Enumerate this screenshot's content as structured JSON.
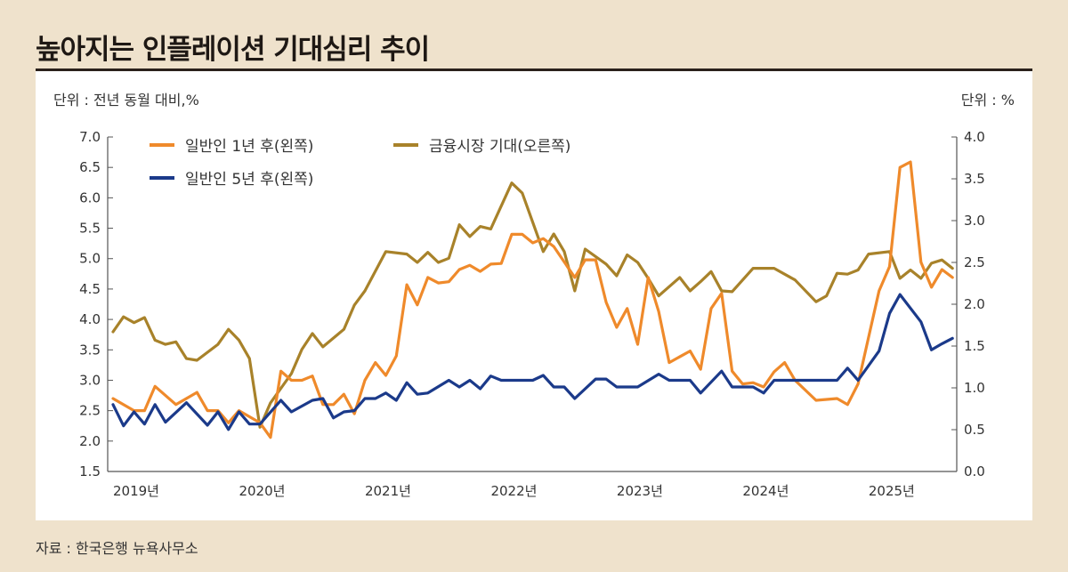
{
  "title": "높아지는 인플레이션 기대심리 추이",
  "unit_left": "단위 : 전년 동월 대비,%",
  "unit_right": "단위 : %",
  "source": "자료 : 한국은행 뉴욕사무소",
  "chart_data": {
    "type": "line",
    "title": "높아지는 인플레이션 기대심리 추이",
    "x_tick_labels": [
      "2019년",
      "2020년",
      "2021년",
      "2022년",
      "2023년",
      "2024년",
      "2025년"
    ],
    "y_left": {
      "label": "단위 : 전년 동월 대비,%",
      "range": [
        1.5,
        7.0
      ],
      "ticks": [
        "1.5",
        "2.0",
        "2.5",
        "3.0",
        "3.5",
        "4.0",
        "4.5",
        "5.0",
        "5.5",
        "6.0",
        "6.5",
        "7.0"
      ]
    },
    "y_right": {
      "label": "단위 : %",
      "range": [
        0.0,
        4.0
      ],
      "ticks": [
        "0.0",
        "0.5",
        "1.0",
        "1.5",
        "2.0",
        "2.5",
        "3.0",
        "3.5",
        "4.0"
      ]
    },
    "grid": false,
    "legend_placement": "top-left",
    "series": [
      {
        "name": "일반인 1년 후(왼쪽)",
        "axis": "left",
        "color": "#ef8a2b",
        "points": [
          [
            "2019-01",
            2.7
          ],
          [
            "2019-03",
            2.5
          ],
          [
            "2019-04",
            2.5
          ],
          [
            "2019-05",
            2.9
          ],
          [
            "2019-07",
            2.6
          ],
          [
            "2019-09",
            2.8
          ],
          [
            "2019-10",
            2.5
          ],
          [
            "2019-11",
            2.5
          ],
          [
            "2019-12",
            2.3
          ],
          [
            "2020-01",
            2.5
          ],
          [
            "2020-03",
            2.3
          ],
          [
            "2020-04",
            2.06
          ],
          [
            "2020-05",
            3.15
          ],
          [
            "2020-06",
            3.0
          ],
          [
            "2020-07",
            3.0
          ],
          [
            "2020-08",
            3.07
          ],
          [
            "2020-09",
            2.6
          ],
          [
            "2020-10",
            2.6
          ],
          [
            "2020-11",
            2.77
          ],
          [
            "2020-12",
            2.45
          ],
          [
            "2021-01",
            3.0
          ],
          [
            "2021-02",
            3.29
          ],
          [
            "2021-03",
            3.08
          ],
          [
            "2021-04",
            3.4
          ],
          [
            "2021-05",
            4.57
          ],
          [
            "2021-06",
            4.24
          ],
          [
            "2021-07",
            4.69
          ],
          [
            "2021-08",
            4.6
          ],
          [
            "2021-09",
            4.62
          ],
          [
            "2021-10",
            4.82
          ],
          [
            "2021-11",
            4.89
          ],
          [
            "2021-12",
            4.79
          ],
          [
            "2022-01",
            4.91
          ],
          [
            "2022-02",
            4.92
          ],
          [
            "2022-03",
            5.4
          ],
          [
            "2022-04",
            5.4
          ],
          [
            "2022-05",
            5.26
          ],
          [
            "2022-06",
            5.33
          ],
          [
            "2022-07",
            5.2
          ],
          [
            "2022-09",
            4.69
          ],
          [
            "2022-10",
            4.98
          ],
          [
            "2022-11",
            4.98
          ],
          [
            "2022-12",
            4.28
          ],
          [
            "2023-01",
            3.87
          ],
          [
            "2023-02",
            4.18
          ],
          [
            "2023-03",
            3.59
          ],
          [
            "2023-04",
            4.69
          ],
          [
            "2023-05",
            4.13
          ],
          [
            "2023-06",
            3.29
          ],
          [
            "2023-08",
            3.48
          ],
          [
            "2023-09",
            3.18
          ],
          [
            "2023-10",
            4.18
          ],
          [
            "2023-11",
            4.43
          ],
          [
            "2023-12",
            3.15
          ],
          [
            "2024-01",
            2.94
          ],
          [
            "2024-02",
            2.96
          ],
          [
            "2024-03",
            2.89
          ],
          [
            "2024-04",
            3.14
          ],
          [
            "2024-05",
            3.29
          ],
          [
            "2024-06",
            3.0
          ],
          [
            "2024-08",
            2.67
          ],
          [
            "2024-10",
            2.7
          ],
          [
            "2024-11",
            2.6
          ],
          [
            "2024-12",
            2.94
          ],
          [
            "2025-02",
            4.47
          ],
          [
            "2025-03",
            4.87
          ],
          [
            "2025-04",
            6.5
          ],
          [
            "2025-05",
            6.59
          ],
          [
            "2025-06",
            4.94
          ],
          [
            "2025-07",
            4.53
          ],
          [
            "2025-08",
            4.82
          ],
          [
            "2025-09",
            4.69
          ]
        ]
      },
      {
        "name": "금융시장 기대(오른쪽)",
        "axis": "right",
        "color": "#a8822a",
        "points": [
          [
            "2019-01",
            1.67
          ],
          [
            "2019-02",
            1.85
          ],
          [
            "2019-03",
            1.78
          ],
          [
            "2019-04",
            1.84
          ],
          [
            "2019-05",
            1.57
          ],
          [
            "2019-06",
            1.52
          ],
          [
            "2019-07",
            1.55
          ],
          [
            "2019-08",
            1.35
          ],
          [
            "2019-09",
            1.33
          ],
          [
            "2019-11",
            1.52
          ],
          [
            "2019-12",
            1.7
          ],
          [
            "2020-01",
            1.57
          ],
          [
            "2020-02",
            1.35
          ],
          [
            "2020-03",
            0.53
          ],
          [
            "2020-04",
            0.82
          ],
          [
            "2020-06",
            1.17
          ],
          [
            "2020-07",
            1.46
          ],
          [
            "2020-08",
            1.65
          ],
          [
            "2020-09",
            1.49
          ],
          [
            "2020-11",
            1.7
          ],
          [
            "2020-12",
            1.99
          ],
          [
            "2021-01",
            2.16
          ],
          [
            "2021-03",
            2.63
          ],
          [
            "2021-05",
            2.6
          ],
          [
            "2021-06",
            2.5
          ],
          [
            "2021-07",
            2.62
          ],
          [
            "2021-08",
            2.5
          ],
          [
            "2021-09",
            2.55
          ],
          [
            "2021-10",
            2.95
          ],
          [
            "2021-11",
            2.81
          ],
          [
            "2021-12",
            2.93
          ],
          [
            "2022-01",
            2.9
          ],
          [
            "2022-03",
            3.45
          ],
          [
            "2022-04",
            3.33
          ],
          [
            "2022-06",
            2.63
          ],
          [
            "2022-07",
            2.84
          ],
          [
            "2022-08",
            2.63
          ],
          [
            "2022-09",
            2.16
          ],
          [
            "2022-10",
            2.66
          ],
          [
            "2022-12",
            2.48
          ],
          [
            "2023-01",
            2.34
          ],
          [
            "2023-02",
            2.59
          ],
          [
            "2023-03",
            2.5
          ],
          [
            "2023-04",
            2.31
          ],
          [
            "2023-05",
            2.1
          ],
          [
            "2023-07",
            2.32
          ],
          [
            "2023-08",
            2.16
          ],
          [
            "2023-09",
            2.27
          ],
          [
            "2023-10",
            2.39
          ],
          [
            "2023-11",
            2.16
          ],
          [
            "2023-12",
            2.15
          ],
          [
            "2024-02",
            2.43
          ],
          [
            "2024-04",
            2.43
          ],
          [
            "2024-06",
            2.29
          ],
          [
            "2024-08",
            2.03
          ],
          [
            "2024-09",
            2.1
          ],
          [
            "2024-10",
            2.37
          ],
          [
            "2024-11",
            2.36
          ],
          [
            "2024-12",
            2.41
          ],
          [
            "2025-01",
            2.6
          ],
          [
            "2025-03",
            2.63
          ],
          [
            "2025-04",
            2.31
          ],
          [
            "2025-05",
            2.41
          ],
          [
            "2025-06",
            2.31
          ],
          [
            "2025-07",
            2.49
          ],
          [
            "2025-08",
            2.53
          ],
          [
            "2025-09",
            2.43
          ]
        ]
      },
      {
        "name": "일반인 5년 후(왼쪽)",
        "axis": "left",
        "color": "#1b3a8a",
        "points": [
          [
            "2019-01",
            2.6
          ],
          [
            "2019-02",
            2.25
          ],
          [
            "2019-03",
            2.48
          ],
          [
            "2019-04",
            2.28
          ],
          [
            "2019-05",
            2.6
          ],
          [
            "2019-06",
            2.31
          ],
          [
            "2019-08",
            2.63
          ],
          [
            "2019-10",
            2.26
          ],
          [
            "2019-11",
            2.48
          ],
          [
            "2019-12",
            2.19
          ],
          [
            "2020-01",
            2.48
          ],
          [
            "2020-02",
            2.28
          ],
          [
            "2020-03",
            2.28
          ],
          [
            "2020-05",
            2.67
          ],
          [
            "2020-06",
            2.48
          ],
          [
            "2020-08",
            2.67
          ],
          [
            "2020-09",
            2.7
          ],
          [
            "2020-10",
            2.38
          ],
          [
            "2020-11",
            2.48
          ],
          [
            "2020-12",
            2.5
          ],
          [
            "2021-01",
            2.7
          ],
          [
            "2021-02",
            2.7
          ],
          [
            "2021-03",
            2.79
          ],
          [
            "2021-04",
            2.67
          ],
          [
            "2021-05",
            2.96
          ],
          [
            "2021-06",
            2.77
          ],
          [
            "2021-07",
            2.79
          ],
          [
            "2021-09",
            3.0
          ],
          [
            "2021-10",
            2.89
          ],
          [
            "2021-11",
            3.0
          ],
          [
            "2021-12",
            2.86
          ],
          [
            "2022-01",
            3.07
          ],
          [
            "2022-02",
            3.0
          ],
          [
            "2022-05",
            3.0
          ],
          [
            "2022-06",
            3.08
          ],
          [
            "2022-07",
            2.89
          ],
          [
            "2022-08",
            2.89
          ],
          [
            "2022-09",
            2.7
          ],
          [
            "2022-11",
            3.02
          ],
          [
            "2022-12",
            3.02
          ],
          [
            "2023-01",
            2.89
          ],
          [
            "2023-03",
            2.89
          ],
          [
            "2023-05",
            3.1
          ],
          [
            "2023-06",
            3.0
          ],
          [
            "2023-08",
            3.0
          ],
          [
            "2023-09",
            2.79
          ],
          [
            "2023-11",
            3.15
          ],
          [
            "2023-12",
            2.89
          ],
          [
            "2024-02",
            2.89
          ],
          [
            "2024-03",
            2.79
          ],
          [
            "2024-04",
            3.0
          ],
          [
            "2024-10",
            3.0
          ],
          [
            "2024-11",
            3.2
          ],
          [
            "2024-12",
            3.0
          ],
          [
            "2025-02",
            3.48
          ],
          [
            "2025-03",
            4.1
          ],
          [
            "2025-04",
            4.41
          ],
          [
            "2025-06",
            3.96
          ],
          [
            "2025-07",
            3.5
          ],
          [
            "2025-08",
            3.6
          ],
          [
            "2025-09",
            3.69
          ]
        ]
      }
    ]
  }
}
